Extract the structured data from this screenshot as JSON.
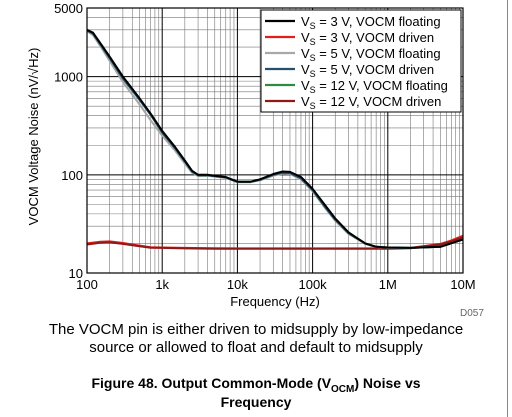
{
  "chart_data": {
    "type": "line",
    "xlabel": "Frequency (Hz)",
    "ylabel": "VOCM Voltage Noise (nV/√Hz)",
    "xscale": "log",
    "yscale": "log",
    "xlim": [
      100,
      10000000
    ],
    "ylim": [
      10,
      5000
    ],
    "grid": true,
    "legend_position": "top-right",
    "x_ticks": [
      {
        "value": 100,
        "label": "100"
      },
      {
        "value": 1000,
        "label": "1k"
      },
      {
        "value": 10000,
        "label": "10k"
      },
      {
        "value": 100000,
        "label": "100k"
      },
      {
        "value": 1000000,
        "label": "1M"
      },
      {
        "value": 10000000,
        "label": "10M"
      }
    ],
    "y_ticks": [
      {
        "value": 10,
        "label": "10"
      },
      {
        "value": 100,
        "label": "100"
      },
      {
        "value": 1000,
        "label": "1000"
      },
      {
        "value": 5000,
        "label": "5000"
      }
    ],
    "series": [
      {
        "name": "VS = 3 V, VOCM floating",
        "color": "#000000",
        "x": [
          100,
          120,
          150,
          200,
          300,
          500,
          700,
          1000,
          1500,
          2000,
          2500,
          3000,
          4000,
          5000,
          7000,
          10000,
          15000,
          20000,
          30000,
          40000,
          50000,
          70000,
          100000,
          150000,
          200000,
          300000,
          500000,
          700000,
          1000000,
          2000000,
          5000000,
          10000000
        ],
        "y": [
          3000,
          2800,
          2200,
          1600,
          1000,
          600,
          420,
          280,
          190,
          140,
          110,
          100,
          100,
          98,
          95,
          85,
          85,
          90,
          102,
          108,
          107,
          95,
          72,
          48,
          36,
          26,
          20,
          18.5,
          18.2,
          18,
          18.5,
          22
        ]
      },
      {
        "name": "VS = 3 V, VOCM driven",
        "color": "#e0201b",
        "x": [
          100,
          150,
          200,
          300,
          500,
          700,
          1000,
          2000,
          5000,
          10000,
          50000,
          100000,
          500000,
          1000000,
          2000000,
          5000000,
          7000000,
          10000000
        ],
        "y": [
          20,
          20.8,
          21,
          20.2,
          19,
          18.3,
          18.2,
          18,
          17.9,
          17.8,
          17.8,
          17.8,
          17.8,
          17.8,
          18,
          19.8,
          21.5,
          24
        ]
      },
      {
        "name": "VS = 5 V, VOCM floating",
        "color": "#a8a8a8",
        "x": [
          100,
          120,
          150,
          200,
          300,
          500,
          700,
          1000,
          1500,
          2000,
          2500,
          3000,
          4000,
          5000,
          7000,
          10000,
          15000,
          20000,
          30000,
          40000,
          50000,
          70000,
          100000,
          150000,
          200000,
          300000,
          500000,
          700000,
          1000000,
          2000000,
          5000000,
          10000000
        ],
        "y": [
          2900,
          2650,
          2050,
          1450,
          880,
          520,
          360,
          250,
          175,
          130,
          105,
          97,
          98,
          96,
          93,
          84,
          84,
          88,
          98,
          103,
          102,
          90,
          68,
          45,
          34,
          25,
          19.8,
          18.4,
          18.1,
          18,
          18.5,
          22
        ]
      },
      {
        "name": "VS = 5 V, VOCM driven",
        "color": "#23506b",
        "x": [
          100,
          120,
          150,
          200,
          300,
          500,
          700,
          1000,
          1500,
          2000,
          2500,
          3000,
          4000,
          5000,
          7000,
          10000,
          15000,
          20000,
          30000,
          40000,
          50000,
          70000,
          100000,
          150000,
          200000,
          300000,
          500000,
          700000,
          1000000,
          2000000,
          5000000,
          10000000
        ],
        "y": [
          2950,
          2750,
          2150,
          1550,
          960,
          580,
          410,
          270,
          185,
          137,
          108,
          99,
          99,
          97,
          94,
          85,
          85,
          89,
          100,
          105,
          104,
          92,
          70,
          46,
          35,
          25.5,
          20,
          18.5,
          18.2,
          18,
          18.5,
          22
        ]
      },
      {
        "name": "VS = 12 V, VOCM floating",
        "color": "#2e8a45",
        "x": [
          100,
          120,
          150,
          200,
          300,
          500,
          700,
          1000,
          1500,
          2000,
          2500,
          3000,
          4000,
          5000,
          7000,
          10000,
          15000,
          20000,
          30000,
          40000,
          50000,
          70000,
          100000,
          150000,
          200000,
          300000,
          500000,
          700000,
          1000000,
          2000000,
          5000000,
          10000000
        ],
        "y": [
          2950,
          2750,
          2150,
          1550,
          960,
          580,
          410,
          270,
          185,
          137,
          108,
          99,
          99,
          97,
          94,
          85,
          85,
          89,
          100,
          105,
          104,
          92,
          70,
          46,
          35,
          25.5,
          20,
          18.5,
          18.2,
          18,
          18.5,
          22
        ]
      },
      {
        "name": "VS = 12 V, VOCM driven",
        "color": "#8b1a1a",
        "x": [
          100,
          150,
          200,
          300,
          500,
          700,
          1000,
          2000,
          5000,
          10000,
          50000,
          100000,
          500000,
          1000000,
          2000000,
          5000000,
          7000000,
          10000000
        ],
        "y": [
          19.5,
          20.3,
          20.5,
          19.8,
          18.7,
          18.1,
          18,
          17.8,
          17.7,
          17.7,
          17.7,
          17.7,
          17.7,
          17.7,
          17.9,
          19.5,
          21,
          23
        ]
      }
    ]
  },
  "legend": {
    "entries": [
      {
        "main": "V",
        "sub": "S",
        "rest": " = 3 V, VOCM floating"
      },
      {
        "main": "V",
        "sub": "S",
        "rest": " = 3 V, VOCM driven"
      },
      {
        "main": "V",
        "sub": "S",
        "rest": " = 5 V, VOCM floating"
      },
      {
        "main": "V",
        "sub": "S",
        "rest": " = 5 V, VOCM driven"
      },
      {
        "main": "V",
        "sub": "S",
        "rest": " = 12 V, VOCM floating"
      },
      {
        "main": "V",
        "sub": "S",
        "rest": " = 12 V, VOCM driven"
      }
    ]
  },
  "doc_id": "D057",
  "caption": {
    "line1": "The VOCM pin is either driven to midsupply by low-impedance",
    "line2": "source or allowed to float and default to midsupply"
  },
  "figure": {
    "prefix": "Figure 48. Output Common-Mode (V",
    "sub": "OCM",
    "suffix": ") Noise vs",
    "line2": "Frequency"
  }
}
